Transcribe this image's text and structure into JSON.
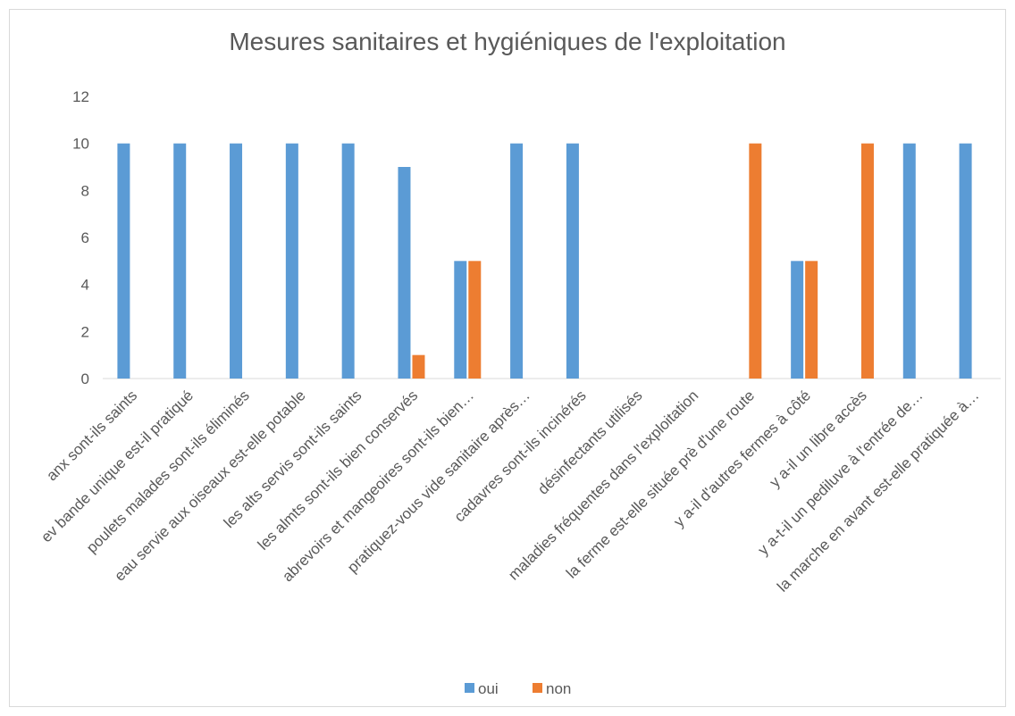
{
  "chart_data": {
    "type": "bar",
    "title": "Mesures sanitaires et hygiéniques de l'exploitation",
    "categories": [
      "anx sont-ils saints",
      "ev bande unique est-il pratiqué",
      "poulets malades sont-ils éliminés",
      "eau servie aux oiseaux est-elle potable",
      "les alts servis sont-ils saints",
      "les almts sont-ils bien conservés",
      "abrevoirs et mangeoires sont-ils bien…",
      "pratiquez-vous vide sanitaire après…",
      "cadavres sont-ils incinérés",
      "désinfectants utilisés",
      "maladies fréquentes dans l'exploitation",
      "la ferme est-elle située prè d'une route",
      "y a-il d'autres fermes à côté",
      "y a-il un libre accès",
      "y a-t-il un pediluve à l'entrée de…",
      "la marche en avant est-elle pratiquée à…"
    ],
    "series": [
      {
        "name": "oui",
        "color": "#5b9bd5",
        "values": [
          10,
          10,
          10,
          10,
          10,
          9,
          5,
          10,
          10,
          0,
          0,
          0,
          5,
          0,
          10,
          10
        ]
      },
      {
        "name": "non",
        "color": "#ed7d31",
        "values": [
          0,
          0,
          0,
          0,
          0,
          1,
          5,
          0,
          0,
          0,
          0,
          10,
          5,
          10,
          0,
          0
        ]
      }
    ],
    "ylim": [
      0,
      12
    ],
    "yticks": [
      0,
      2,
      4,
      6,
      8,
      10,
      12
    ],
    "grid": false,
    "legend": "bottom"
  }
}
